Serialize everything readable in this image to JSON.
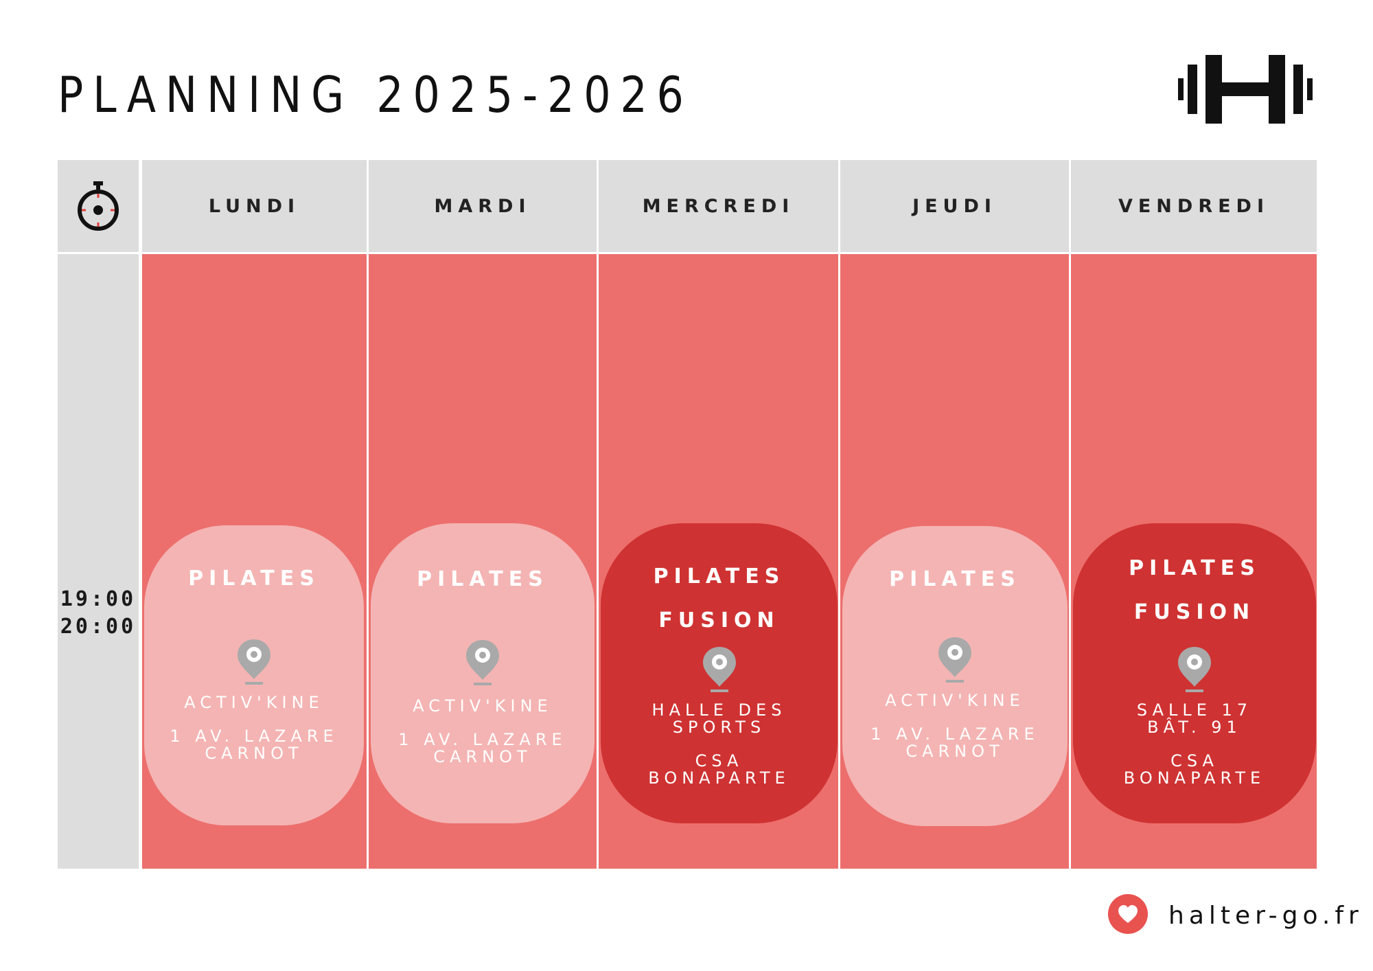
{
  "title": "PLANNING 2025-2026",
  "colors": {
    "header_bg": "#dddddd",
    "day_bg": "#ec6f6d",
    "pill_light": "#f4b4b3",
    "pill_dark": "#cf3232",
    "accent": "#e8524f"
  },
  "time_header_icon": "stopwatch-icon",
  "logo_icon": "dumbbell-h-icon",
  "days": [
    "LUNDI",
    "MARDI",
    "MERCREDI",
    "JEUDI",
    "VENDREDI"
  ],
  "time": {
    "start": "19:00",
    "end": "20:00"
  },
  "sessions": [
    {
      "name": "PILATES",
      "style": "light",
      "location_icon": "map-pin-icon",
      "line1": "ACTIV'KINE",
      "line2": "1 AV. LAZARE\nCARNOT"
    },
    {
      "name": "PILATES",
      "style": "light",
      "location_icon": "map-pin-icon",
      "line1": "ACTIV'KINE",
      "line2": "1 AV. LAZARE\nCARNOT"
    },
    {
      "name": "PILATES\nFUSION",
      "style": "dark",
      "location_icon": "map-pin-icon",
      "line1": "HALLE DES\nSPORTS",
      "line2": "CSA\nBONAPARTE"
    },
    {
      "name": "PILATES",
      "style": "light",
      "location_icon": "map-pin-icon",
      "line1": "ACTIV'KINE",
      "line2": "1 AV. LAZARE\nCARNOT"
    },
    {
      "name": "PILATES\nFUSION",
      "style": "dark",
      "location_icon": "map-pin-icon",
      "line1": "SALLE 17\nBÂT. 91",
      "line2": "CSA\nBONAPARTE"
    }
  ],
  "footer": {
    "icon": "heart-icon",
    "site": "halter-go.fr"
  }
}
